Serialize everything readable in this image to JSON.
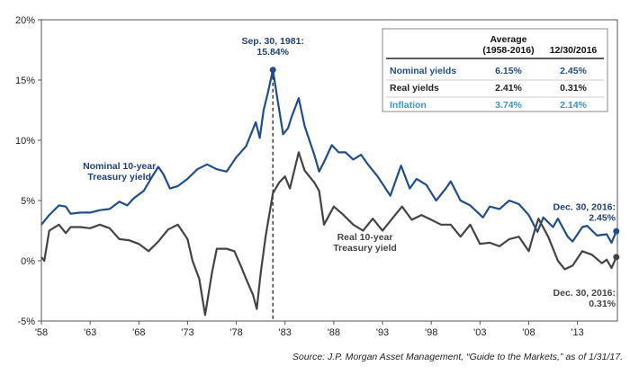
{
  "chart_data": {
    "type": "line",
    "xlim": [
      1958,
      2017.1
    ],
    "ylim": [
      -5,
      20
    ],
    "y_ticks": [
      {
        "value": 20,
        "label": "20%"
      },
      {
        "value": 15,
        "label": "15%"
      },
      {
        "value": 10,
        "label": "10%"
      },
      {
        "value": 5,
        "label": "5%"
      },
      {
        "value": 0,
        "label": "0%"
      },
      {
        "value": -5,
        "label": "-5%"
      }
    ],
    "x_ticks": [
      {
        "value": 1958,
        "label": "'58"
      },
      {
        "value": 1963,
        "label": "'63"
      },
      {
        "value": 1968,
        "label": "'68"
      },
      {
        "value": 1973,
        "label": "'73"
      },
      {
        "value": 1978,
        "label": "'78"
      },
      {
        "value": 1983,
        "label": "'83"
      },
      {
        "value": 1988,
        "label": "'88"
      },
      {
        "value": 1993,
        "label": "'93"
      },
      {
        "value": 1998,
        "label": "'98"
      },
      {
        "value": 2003,
        "label": "'03"
      },
      {
        "value": 2008,
        "label": "'08"
      },
      {
        "value": 2013,
        "label": "'13"
      }
    ],
    "grid": false,
    "series": [
      {
        "name": "Nominal 10-year Treasury yield",
        "label_lines": [
          "Nominal 10-year",
          "Treasury yield"
        ],
        "color": "#1f4e8c",
        "points": [
          [
            1958.0,
            3.0
          ],
          [
            1958.8,
            3.8
          ],
          [
            1959.8,
            4.6
          ],
          [
            1960.5,
            4.5
          ],
          [
            1961.0,
            3.9
          ],
          [
            1962.0,
            4.0
          ],
          [
            1963.0,
            4.0
          ],
          [
            1964.0,
            4.2
          ],
          [
            1965.0,
            4.3
          ],
          [
            1966.0,
            4.9
          ],
          [
            1966.8,
            4.6
          ],
          [
            1967.5,
            5.2
          ],
          [
            1968.5,
            5.8
          ],
          [
            1969.3,
            6.9
          ],
          [
            1970.0,
            7.8
          ],
          [
            1970.5,
            7.2
          ],
          [
            1971.2,
            6.0
          ],
          [
            1972.0,
            6.2
          ],
          [
            1973.0,
            6.8
          ],
          [
            1974.0,
            7.6
          ],
          [
            1975.0,
            8.0
          ],
          [
            1976.0,
            7.6
          ],
          [
            1977.0,
            7.4
          ],
          [
            1978.0,
            8.6
          ],
          [
            1979.0,
            9.5
          ],
          [
            1980.0,
            11.5
          ],
          [
            1980.4,
            10.2
          ],
          [
            1980.8,
            12.5
          ],
          [
            1981.2,
            13.8
          ],
          [
            1981.75,
            15.84
          ],
          [
            1982.2,
            13.5
          ],
          [
            1982.8,
            10.5
          ],
          [
            1983.3,
            11.0
          ],
          [
            1983.7,
            12.0
          ],
          [
            1984.4,
            13.5
          ],
          [
            1985.0,
            11.2
          ],
          [
            1986.0,
            8.8
          ],
          [
            1986.5,
            7.4
          ],
          [
            1987.0,
            8.2
          ],
          [
            1987.8,
            9.6
          ],
          [
            1988.5,
            9.0
          ],
          [
            1989.2,
            9.0
          ],
          [
            1990.0,
            8.4
          ],
          [
            1990.8,
            8.8
          ],
          [
            1991.5,
            8.0
          ],
          [
            1992.5,
            7.0
          ],
          [
            1993.8,
            5.4
          ],
          [
            1994.9,
            7.9
          ],
          [
            1995.8,
            6.0
          ],
          [
            1996.5,
            6.8
          ],
          [
            1997.5,
            6.3
          ],
          [
            1998.5,
            5.0
          ],
          [
            1999.5,
            6.0
          ],
          [
            2000.0,
            6.6
          ],
          [
            2001.0,
            5.0
          ],
          [
            2002.0,
            4.6
          ],
          [
            2003.3,
            3.6
          ],
          [
            2004.0,
            4.5
          ],
          [
            2005.0,
            4.3
          ],
          [
            2006.0,
            5.0
          ],
          [
            2007.0,
            4.7
          ],
          [
            2008.0,
            3.8
          ],
          [
            2008.9,
            2.4
          ],
          [
            2009.5,
            3.6
          ],
          [
            2010.5,
            2.8
          ],
          [
            2011.0,
            3.5
          ],
          [
            2012.0,
            2.0
          ],
          [
            2012.5,
            1.6
          ],
          [
            2013.5,
            2.8
          ],
          [
            2014.0,
            2.9
          ],
          [
            2015.0,
            2.1
          ],
          [
            2016.0,
            2.2
          ],
          [
            2016.5,
            1.5
          ],
          [
            2016.99,
            2.45
          ]
        ],
        "end_label_lines": [
          "Dec. 30, 2016:",
          "2.45%"
        ],
        "peak": {
          "x": 1981.75,
          "y": 15.84,
          "label_lines": [
            "Sep. 30, 1981:",
            "15.84%"
          ]
        }
      },
      {
        "name": "Real 10-year Treasury yield",
        "label_lines": [
          "Real 10-year",
          "Treasury yield"
        ],
        "color": "#444444",
        "points": [
          [
            1958.0,
            0.3
          ],
          [
            1958.3,
            0.0
          ],
          [
            1958.8,
            2.5
          ],
          [
            1959.8,
            3.0
          ],
          [
            1960.5,
            2.3
          ],
          [
            1961.0,
            2.8
          ],
          [
            1962.0,
            2.8
          ],
          [
            1963.0,
            2.7
          ],
          [
            1964.0,
            3.0
          ],
          [
            1965.0,
            2.7
          ],
          [
            1966.0,
            1.8
          ],
          [
            1967.0,
            1.7
          ],
          [
            1968.0,
            1.4
          ],
          [
            1969.0,
            0.8
          ],
          [
            1970.0,
            1.6
          ],
          [
            1971.0,
            2.6
          ],
          [
            1972.0,
            3.0
          ],
          [
            1973.0,
            1.8
          ],
          [
            1973.5,
            0.0
          ],
          [
            1974.2,
            -1.5
          ],
          [
            1974.8,
            -4.5
          ],
          [
            1975.5,
            -1.0
          ],
          [
            1976.0,
            1.0
          ],
          [
            1977.0,
            1.0
          ],
          [
            1977.8,
            0.8
          ],
          [
            1978.5,
            -0.5
          ],
          [
            1979.0,
            -1.5
          ],
          [
            1979.7,
            -2.8
          ],
          [
            1980.1,
            -4.0
          ],
          [
            1980.5,
            -1.0
          ],
          [
            1981.0,
            2.0
          ],
          [
            1981.75,
            5.6
          ],
          [
            1982.4,
            6.5
          ],
          [
            1983.0,
            7.0
          ],
          [
            1983.5,
            6.0
          ],
          [
            1984.4,
            9.0
          ],
          [
            1985.0,
            7.5
          ],
          [
            1986.0,
            6.5
          ],
          [
            1986.5,
            5.8
          ],
          [
            1987.0,
            3.0
          ],
          [
            1988.0,
            4.5
          ],
          [
            1989.0,
            3.8
          ],
          [
            1990.0,
            3.0
          ],
          [
            1991.0,
            2.5
          ],
          [
            1992.0,
            3.5
          ],
          [
            1993.0,
            2.5
          ],
          [
            1994.0,
            3.5
          ],
          [
            1995.0,
            4.5
          ],
          [
            1996.0,
            3.4
          ],
          [
            1997.0,
            3.8
          ],
          [
            1998.0,
            3.4
          ],
          [
            1999.0,
            3.0
          ],
          [
            2000.0,
            3.0
          ],
          [
            2001.0,
            2.0
          ],
          [
            2002.0,
            3.0
          ],
          [
            2003.0,
            1.4
          ],
          [
            2004.0,
            1.5
          ],
          [
            2005.0,
            1.2
          ],
          [
            2006.0,
            1.8
          ],
          [
            2007.0,
            2.0
          ],
          [
            2008.0,
            0.8
          ],
          [
            2008.6,
            2.5
          ],
          [
            2009.0,
            3.5
          ],
          [
            2010.0,
            2.0
          ],
          [
            2011.0,
            0.0
          ],
          [
            2011.7,
            -0.7
          ],
          [
            2012.5,
            -0.4
          ],
          [
            2013.5,
            0.8
          ],
          [
            2014.5,
            0.5
          ],
          [
            2015.5,
            -0.2
          ],
          [
            2016.0,
            0.1
          ],
          [
            2016.5,
            -0.6
          ],
          [
            2016.99,
            0.31
          ]
        ],
        "end_label_lines": [
          "Dec. 30, 2016:",
          "0.31%"
        ]
      }
    ],
    "peak_marker": {
      "x": 1981.75,
      "style": "dashed"
    }
  },
  "stats_table": {
    "headers": {
      "average": [
        "Average",
        "(1958-2016)"
      ],
      "current": "12/30/2016"
    },
    "rows": [
      {
        "name": "Nominal yields",
        "average": "6.15%",
        "current": "2.45%",
        "color": "#1f4e8c"
      },
      {
        "name": "Real yields",
        "average": "2.41%",
        "current": "0.31%",
        "color": "#222222"
      },
      {
        "name": "Inflation",
        "average": "3.74%",
        "current": "2.14%",
        "color": "#3a98c8"
      }
    ]
  },
  "source": "Source: J.P. Morgan Asset Management, “Guide to the Markets,” as of 1/31/17."
}
